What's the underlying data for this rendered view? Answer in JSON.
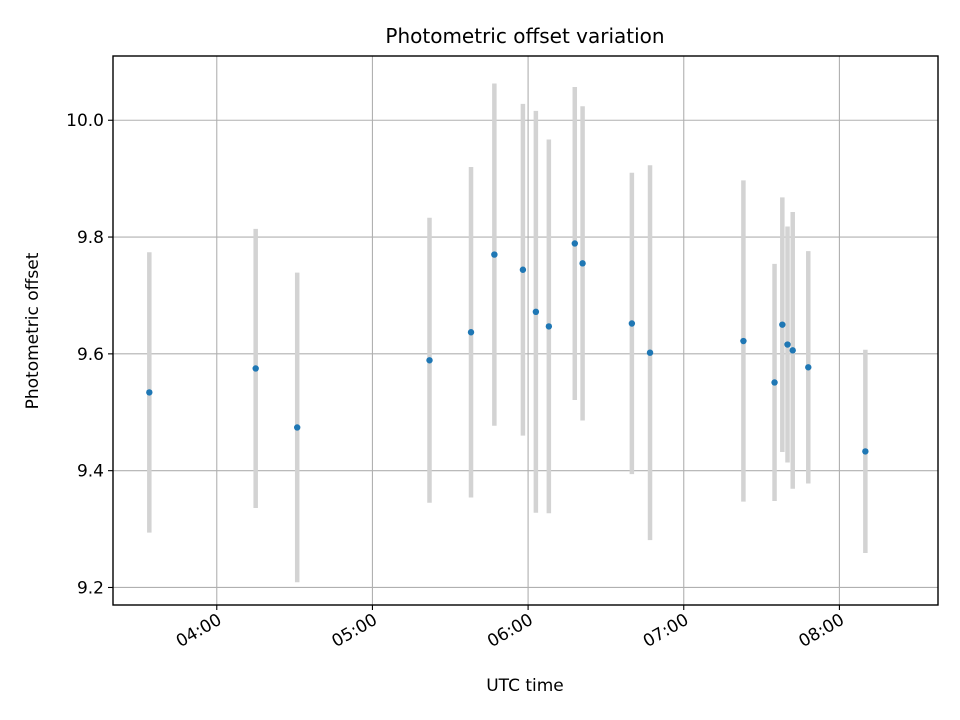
{
  "chart_data": {
    "type": "scatter",
    "title": "Photometric offset variation",
    "xlabel": "UTC time",
    "ylabel": "Photometric offset",
    "x_unit": "time of day (HH:MM, UTC)",
    "xlim": [
      "03:20",
      "08:38"
    ],
    "ylim": [
      9.17,
      10.11
    ],
    "xticks": [
      "04:00",
      "05:00",
      "06:00",
      "07:00",
      "08:00"
    ],
    "yticks": [
      "9.2",
      "9.4",
      "9.6",
      "9.8",
      "10.0"
    ],
    "grid": true,
    "legend": "none",
    "marker_color": "#1f77b4",
    "errorbar_color": "#d3d3d3",
    "points": [
      {
        "x": "03:34",
        "y": 9.534,
        "err": 0.24
      },
      {
        "x": "04:15",
        "y": 9.575,
        "err": 0.239
      },
      {
        "x": "04:31",
        "y": 9.474,
        "err": 0.265
      },
      {
        "x": "05:22",
        "y": 9.589,
        "err": 0.244
      },
      {
        "x": "05:38",
        "y": 9.637,
        "err": 0.283
      },
      {
        "x": "05:47",
        "y": 9.77,
        "err": 0.293
      },
      {
        "x": "05:58",
        "y": 9.744,
        "err": 0.284
      },
      {
        "x": "06:03",
        "y": 9.672,
        "err": 0.344
      },
      {
        "x": "06:08",
        "y": 9.647,
        "err": 0.32
      },
      {
        "x": "06:18",
        "y": 9.789,
        "err": 0.268
      },
      {
        "x": "06:21",
        "y": 9.755,
        "err": 0.269
      },
      {
        "x": "06:40",
        "y": 9.652,
        "err": 0.258
      },
      {
        "x": "06:47",
        "y": 9.602,
        "err": 0.321
      },
      {
        "x": "07:23",
        "y": 9.622,
        "err": 0.275
      },
      {
        "x": "07:35",
        "y": 9.551,
        "err": 0.203
      },
      {
        "x": "07:38",
        "y": 9.65,
        "err": 0.218
      },
      {
        "x": "07:40",
        "y": 9.616,
        "err": 0.202
      },
      {
        "x": "07:42",
        "y": 9.606,
        "err": 0.237
      },
      {
        "x": "07:48",
        "y": 9.577,
        "err": 0.199
      },
      {
        "x": "08:10",
        "y": 9.433,
        "err": 0.174
      }
    ]
  }
}
